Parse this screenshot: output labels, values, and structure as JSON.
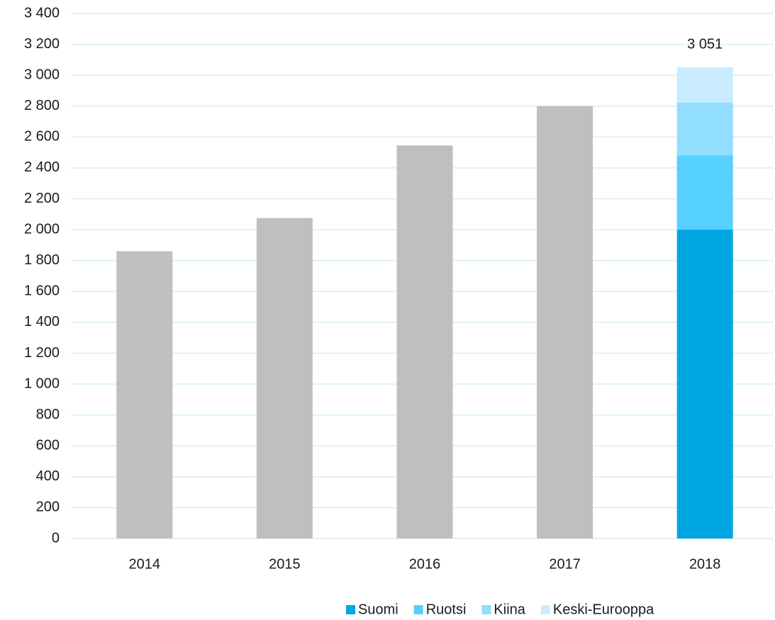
{
  "chart_data": {
    "type": "stacked_bar",
    "categories": [
      "2014",
      "2015",
      "2016",
      "2017",
      "2018"
    ],
    "series": [
      {
        "color": "#bfbfbf",
        "values": [
          1860,
          2075,
          2545,
          2800,
          null
        ]
      },
      {
        "name": "Suomi",
        "color": "#00a6e2",
        "values": [
          null,
          null,
          null,
          null,
          2000
        ]
      },
      {
        "name": "Ruotsi",
        "color": "#56d0ff",
        "values": [
          null,
          null,
          null,
          null,
          480
        ]
      },
      {
        "name": "Kiina",
        "color": "#92deff",
        "values": [
          null,
          null,
          null,
          null,
          345
        ]
      },
      {
        "name": "Keski-Eurooppa",
        "color": "#c9edff",
        "values": [
          null,
          null,
          null,
          null,
          226
        ]
      }
    ],
    "annotations": [
      {
        "category": "2018",
        "value": 3051,
        "text": "3 051"
      }
    ],
    "ylim": [
      0,
      3400
    ],
    "yticks": [
      0,
      200,
      400,
      600,
      800,
      {
        "value": 1000,
        "label": "1 000"
      },
      {
        "value": 1200,
        "label": "1 200"
      },
      {
        "value": 1400,
        "label": "1 400"
      },
      {
        "value": 1600,
        "label": "1 600"
      },
      {
        "value": 1800,
        "label": "1 800"
      },
      {
        "value": 2000,
        "label": "2 000"
      },
      {
        "value": 2200,
        "label": "2 200"
      },
      {
        "value": 2400,
        "label": "2 400"
      },
      {
        "value": 2600,
        "label": "2 600"
      },
      {
        "value": 2800,
        "label": "2 800"
      },
      {
        "value": 3000,
        "label": "3 000"
      },
      {
        "value": 3200,
        "label": "3 200"
      },
      {
        "value": 3400,
        "label": "3 400"
      }
    ],
    "grid": true,
    "legend": "bottom"
  }
}
